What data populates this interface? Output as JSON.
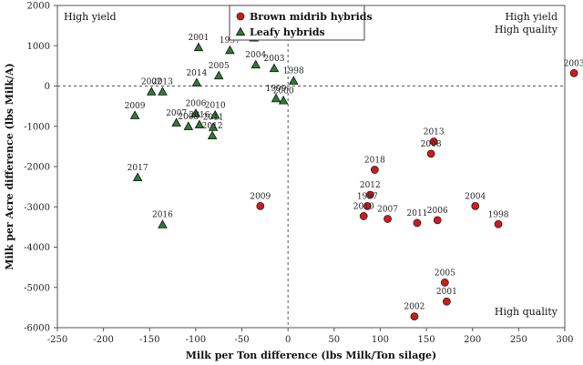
{
  "chart_data": {
    "type": "scatter",
    "xlabel": "Milk per Ton  difference (lbs Milk/Ton silage)",
    "ylabel": "Milk per Acre difference (lbs Milk/A)",
    "xlim": [
      -250,
      300
    ],
    "ylim": [
      -6000,
      2000
    ],
    "xticks": [
      -250,
      -200,
      -150,
      -100,
      -50,
      0,
      50,
      100,
      150,
      200,
      250,
      300
    ],
    "yticks": [
      -6000,
      -5000,
      -4000,
      -3000,
      -2000,
      -1000,
      0,
      1000,
      2000
    ],
    "grid": false,
    "legend_position": "top-center",
    "quadrant_labels": {
      "top_left": "High yield",
      "top_right": [
        "High yield",
        "High quality"
      ],
      "bottom_right": "High quality"
    },
    "series": [
      {
        "name": "Brown midrib hybrids",
        "marker": "circle",
        "color": "#d11a1a",
        "points": [
          {
            "x": 310,
            "y": 320,
            "label": "2003"
          },
          {
            "x": 158,
            "y": -1380,
            "label": "2013"
          },
          {
            "x": 155,
            "y": -1680,
            "label": "2008"
          },
          {
            "x": 94,
            "y": -2080,
            "label": "2018"
          },
          {
            "x": 89,
            "y": -2700,
            "label": "2012"
          },
          {
            "x": 86,
            "y": -2980,
            "label": "1997"
          },
          {
            "x": 82,
            "y": -3230,
            "label": "2010"
          },
          {
            "x": 108,
            "y": -3300,
            "label": "2007"
          },
          {
            "x": 140,
            "y": -3400,
            "label": "2011"
          },
          {
            "x": 162,
            "y": -3330,
            "label": "2006"
          },
          {
            "x": 203,
            "y": -2980,
            "label": "2004"
          },
          {
            "x": 228,
            "y": -3430,
            "label": "1998"
          },
          {
            "x": -30,
            "y": -2980,
            "label": "2009"
          },
          {
            "x": 170,
            "y": -4880,
            "label": "2005"
          },
          {
            "x": 172,
            "y": -5350,
            "label": "2001"
          },
          {
            "x": 137,
            "y": -5720,
            "label": "2002"
          }
        ]
      },
      {
        "name": "Leafy hybrids",
        "marker": "triangle",
        "color": "#2e7d32",
        "points": [
          {
            "x": -97,
            "y": 960,
            "label": "2001"
          },
          {
            "x": -37,
            "y": 1200,
            "label": "1996"
          },
          {
            "x": -63,
            "y": 890,
            "label": "1997"
          },
          {
            "x": -35,
            "y": 530,
            "label": "2004"
          },
          {
            "x": -15,
            "y": 440,
            "label": "2003"
          },
          {
            "x": -75,
            "y": 260,
            "label": "2005"
          },
          {
            "x": 6,
            "y": 130,
            "label": "1998"
          },
          {
            "x": -99,
            "y": 80,
            "label": "2014"
          },
          {
            "x": -13,
            "y": -310,
            "label": "1999"
          },
          {
            "x": -5,
            "y": -360,
            "label": "2000"
          },
          {
            "x": -148,
            "y": -140,
            "label": "2002"
          },
          {
            "x": -136,
            "y": -140,
            "label": "2013"
          },
          {
            "x": -166,
            "y": -730,
            "label": "2009"
          },
          {
            "x": -100,
            "y": -680,
            "label": "2006"
          },
          {
            "x": -79,
            "y": -720,
            "label": "2010"
          },
          {
            "x": -121,
            "y": -910,
            "label": "2007"
          },
          {
            "x": -108,
            "y": -1000,
            "label": "2008"
          },
          {
            "x": -96,
            "y": -960,
            "label": "2016"
          },
          {
            "x": -81,
            "y": -1020,
            "label": "2011"
          },
          {
            "x": -82,
            "y": -1230,
            "label": "2012"
          },
          {
            "x": -163,
            "y": -2270,
            "label": "2017"
          },
          {
            "x": -136,
            "y": -3440,
            "label": "2016"
          }
        ]
      }
    ]
  }
}
